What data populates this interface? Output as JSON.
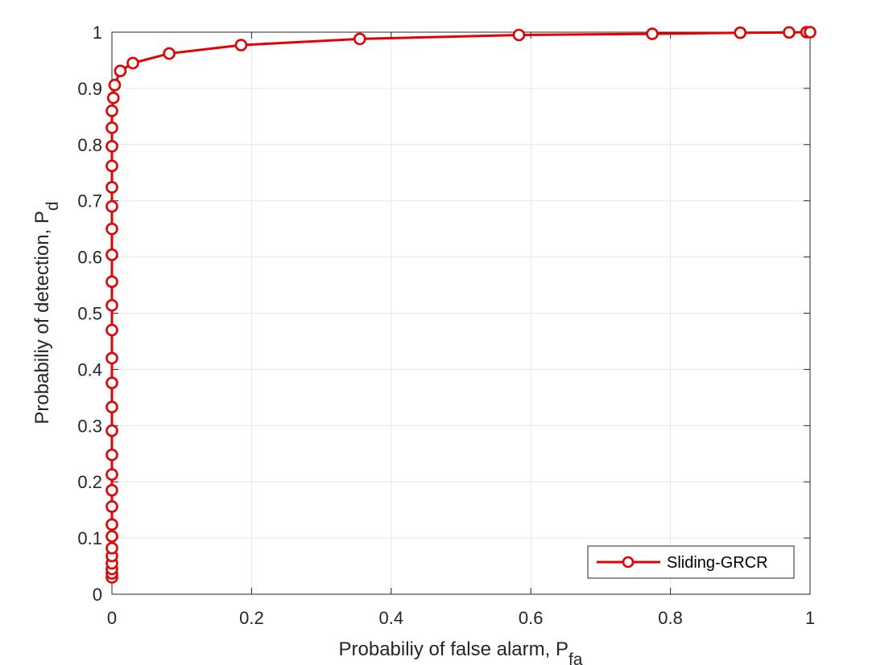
{
  "chart_data": {
    "type": "line",
    "xlabel": {
      "text": "Probabiliy of false alarm, P",
      "sub": "fa"
    },
    "ylabel": {
      "text": "Probabiliy of detection, P",
      "sub": "d"
    },
    "xlim": [
      0,
      1
    ],
    "ylim": [
      0,
      1
    ],
    "xticks": [
      0,
      0.2,
      0.4,
      0.6,
      0.8,
      1
    ],
    "xtick_labels": [
      "0",
      "0.2",
      "0.4",
      "0.6",
      "0.8",
      "1"
    ],
    "yticks": [
      0,
      0.1,
      0.2,
      0.3,
      0.4,
      0.5,
      0.6,
      0.7,
      0.8,
      0.9,
      1
    ],
    "ytick_labels": [
      "0",
      "0.1",
      "0.2",
      "0.3",
      "0.4",
      "0.5",
      "0.6",
      "0.7",
      "0.8",
      "0.9",
      "1"
    ],
    "grid": true,
    "legend_position": "bottom-right",
    "series": [
      {
        "name": "Sliding-GRCR",
        "color": "#e60000",
        "marker": "circle",
        "points": [
          [
            0,
            0.03
          ],
          [
            0,
            0.037
          ],
          [
            0,
            0.045
          ],
          [
            0,
            0.055
          ],
          [
            0,
            0.068
          ],
          [
            0,
            0.082
          ],
          [
            0,
            0.103
          ],
          [
            0,
            0.124
          ],
          [
            0,
            0.156
          ],
          [
            0,
            0.185
          ],
          [
            0,
            0.213
          ],
          [
            0,
            0.248
          ],
          [
            0,
            0.291
          ],
          [
            0,
            0.333
          ],
          [
            0,
            0.376
          ],
          [
            0,
            0.42
          ],
          [
            0,
            0.47
          ],
          [
            0,
            0.514
          ],
          [
            0,
            0.556
          ],
          [
            0,
            0.604
          ],
          [
            0,
            0.65
          ],
          [
            0,
            0.69
          ],
          [
            0,
            0.724
          ],
          [
            0,
            0.762
          ],
          [
            0,
            0.797
          ],
          [
            0,
            0.83
          ],
          [
            0,
            0.86
          ],
          [
            0.002,
            0.883
          ],
          [
            0.004,
            0.906
          ],
          [
            0.012,
            0.931
          ],
          [
            0.03,
            0.945
          ],
          [
            0.082,
            0.962
          ],
          [
            0.185,
            0.977
          ],
          [
            0.355,
            0.988
          ],
          [
            0.583,
            0.995
          ],
          [
            0.774,
            0.997
          ],
          [
            0.9,
            0.999
          ],
          [
            0.97,
            0.9995
          ],
          [
            0.995,
            1.0
          ],
          [
            1.0,
            1.0
          ]
        ]
      }
    ]
  }
}
